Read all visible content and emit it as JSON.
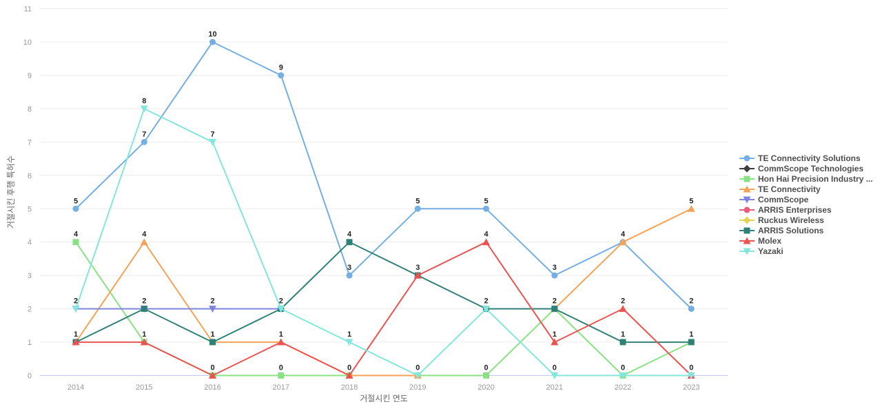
{
  "chart_data": {
    "type": "line",
    "x": [
      2014,
      2015,
      2016,
      2017,
      2018,
      2019,
      2020,
      2021,
      2022,
      2023
    ],
    "xlabel": "거절시킨 연도",
    "ylabel": "거절시킨 후행 특허수",
    "ylim": [
      0,
      11
    ],
    "y_ticks": [
      0,
      1,
      2,
      3,
      4,
      5,
      6,
      7,
      8,
      9,
      10,
      11
    ],
    "grid": "horizontal",
    "legend_position": "right",
    "point_labels": "on",
    "series": [
      {
        "name": "TE Connectivity Solutions",
        "color": "#74aee3",
        "symbol": "circle",
        "values": [
          5,
          7,
          10,
          9,
          3,
          5,
          5,
          3,
          4,
          2
        ]
      },
      {
        "name": "CommScope Technologies",
        "color": "#3f3f3f",
        "symbol": "diamond",
        "values": [
          null,
          null,
          null,
          null,
          null,
          null,
          null,
          null,
          null,
          null
        ]
      },
      {
        "name": "Hon Hai Precision Industry ...",
        "color": "#8ae184",
        "symbol": "square",
        "values": [
          4,
          1,
          0,
          0,
          0,
          0,
          0,
          2,
          0,
          1
        ]
      },
      {
        "name": "TE Connectivity",
        "color": "#f5a356",
        "symbol": "triangle",
        "values": [
          1,
          4,
          1,
          1,
          0,
          0,
          null,
          2,
          4,
          5
        ]
      },
      {
        "name": "CommScope",
        "color": "#7d84e0",
        "symbol": "triangle-down",
        "values": [
          2,
          2,
          2,
          2,
          null,
          null,
          null,
          null,
          null,
          null
        ]
      },
      {
        "name": "ARRIS Enterprises",
        "color": "#e85c7e",
        "symbol": "circle",
        "values": [
          null,
          null,
          null,
          null,
          null,
          null,
          null,
          null,
          null,
          null
        ]
      },
      {
        "name": "Ruckus Wireless",
        "color": "#e5d155",
        "symbol": "diamond",
        "values": [
          null,
          null,
          null,
          null,
          null,
          null,
          null,
          null,
          null,
          null
        ]
      },
      {
        "name": "ARRIS Solutions",
        "color": "#2f8077",
        "symbol": "square",
        "values": [
          1,
          2,
          1,
          2,
          4,
          3,
          2,
          2,
          1,
          1
        ]
      },
      {
        "name": "Molex",
        "color": "#ea5350",
        "symbol": "triangle",
        "values": [
          1,
          1,
          0,
          1,
          0,
          3,
          4,
          1,
          2,
          0
        ]
      },
      {
        "name": "Yazaki",
        "color": "#83e6dd",
        "symbol": "triangle-down",
        "values": [
          2,
          8,
          7,
          2,
          1,
          0,
          2,
          0,
          0,
          0
        ]
      }
    ]
  },
  "style": {
    "grid_line_color": "#ececec",
    "axis_line_color": "#bccbea",
    "tick_label_color": "#999999",
    "axis_title_color": "#666666",
    "point_label_color": "#222222",
    "legend_text_color": "#4d4d4d",
    "background": "#ffffff"
  }
}
